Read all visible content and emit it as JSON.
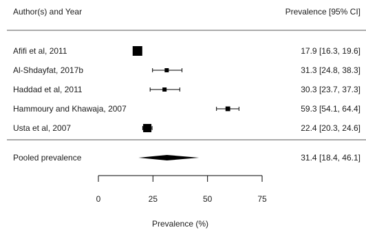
{
  "chart_data": {
    "type": "forest",
    "header_left": "Author(s) and Year",
    "header_right": "Prevalence [95% CI]",
    "xlabel": "Prevalence (%)",
    "xlim": [
      0,
      75
    ],
    "xticks": [
      0,
      25,
      50,
      75
    ],
    "studies": [
      {
        "label": "Afifi et al, 2011",
        "estimate": 17.9,
        "lower": 16.3,
        "upper": 19.6,
        "weight": 3.0,
        "ci_text": "17.9 [16.3, 19.6]"
      },
      {
        "label": "Al-Shdayfat, 2017b",
        "estimate": 31.3,
        "lower": 24.8,
        "upper": 38.3,
        "weight": 1.0,
        "ci_text": "31.3 [24.8, 38.3]"
      },
      {
        "label": "Haddad et al, 2011",
        "estimate": 30.3,
        "lower": 23.7,
        "upper": 37.3,
        "weight": 1.0,
        "ci_text": "30.3 [23.7, 37.3]"
      },
      {
        "label": "Hammoury and Khawaja, 2007",
        "estimate": 59.3,
        "lower": 54.1,
        "upper": 64.4,
        "weight": 1.2,
        "ci_text": "59.3 [54.1, 64.4]"
      },
      {
        "label": "Usta et al, 2007",
        "estimate": 22.4,
        "lower": 20.3,
        "upper": 24.6,
        "weight": 2.5,
        "ci_text": "22.4 [20.3, 24.6]"
      }
    ],
    "pooled": {
      "label": "Pooled prevalence",
      "estimate": 31.4,
      "lower": 18.4,
      "upper": 46.1,
      "ci_text": "31.4 [18.4, 46.1]"
    },
    "colors": {
      "ink": "#000000",
      "rule": "#555555"
    }
  }
}
